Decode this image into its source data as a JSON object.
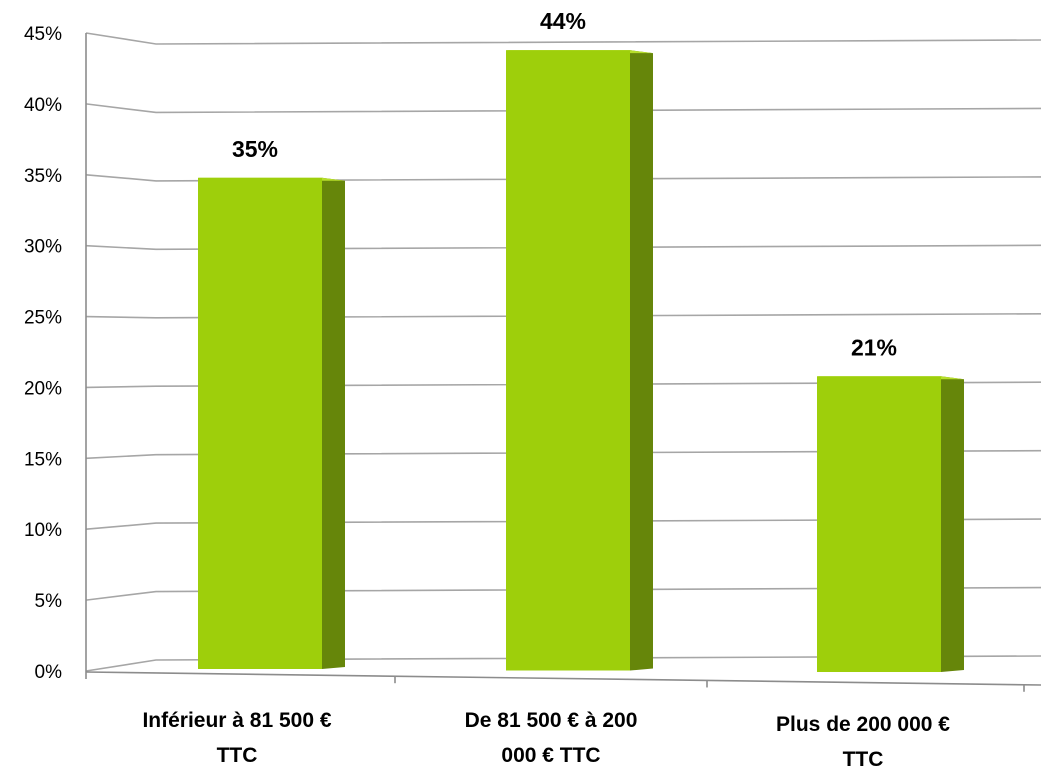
{
  "chart_data": {
    "type": "bar",
    "categories": [
      [
        "Inférieur à 81 500 €",
        "TTC"
      ],
      [
        "De 81 500 € à 200",
        "000 € TTC"
      ],
      [
        "Plus de 200 000 €",
        "TTC"
      ]
    ],
    "values": [
      35,
      44,
      21
    ],
    "data_labels": [
      "35%",
      "44%",
      "21%"
    ],
    "y_ticks": [
      "0%",
      "5%",
      "10%",
      "15%",
      "20%",
      "25%",
      "30%",
      "35%",
      "40%",
      "45%"
    ],
    "ylim": [
      0,
      45
    ],
    "grid": true,
    "legend": "none",
    "colors": {
      "bar_front": "#9ecf0b",
      "bar_side": "#66860a",
      "bar_top": "#b6de2a",
      "grid": "#a6a6a6",
      "axis": "#8c8c8c"
    }
  }
}
